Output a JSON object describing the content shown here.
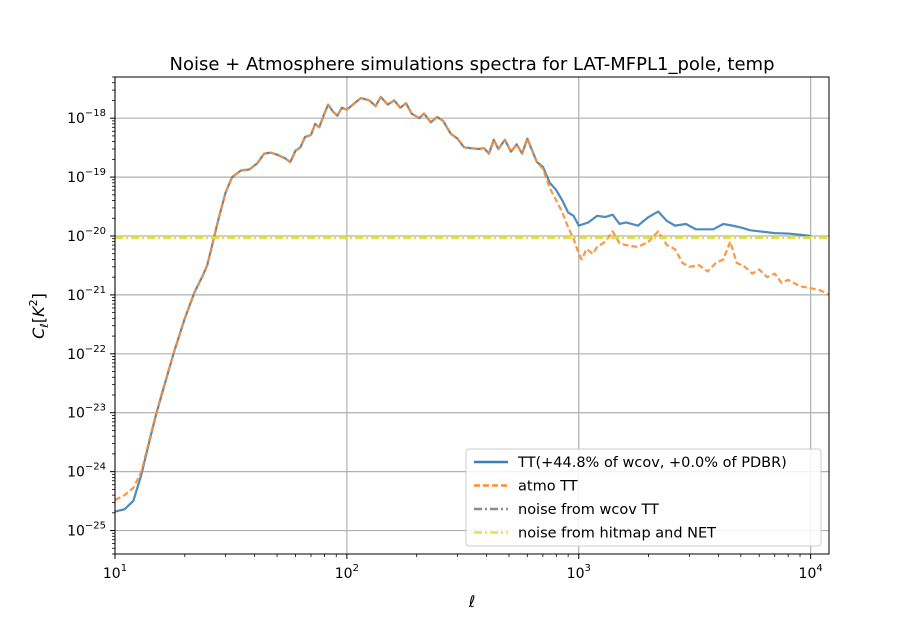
{
  "chart_data": {
    "type": "line",
    "title": "Noise + Atmosphere simulations spectra for LAT-MFPL1_pole, temp",
    "xlabel": "ℓ",
    "ylabel": "C_ℓ[K²]",
    "xscale": "log",
    "yscale": "log",
    "xlim": [
      10,
      12000
    ],
    "ylim": [
      4e-26,
      5e-18
    ],
    "grid": true,
    "legend_position": "lower-right",
    "x_ticks": [
      {
        "value": 10,
        "base": "10",
        "exp": "1"
      },
      {
        "value": 100,
        "base": "10",
        "exp": "2"
      },
      {
        "value": 1000,
        "base": "10",
        "exp": "3"
      },
      {
        "value": 10000,
        "base": "10",
        "exp": "4"
      }
    ],
    "y_ticks": [
      {
        "value": 1e-25,
        "base": "10",
        "exp": "−25"
      },
      {
        "value": 1e-24,
        "base": "10",
        "exp": "−24"
      },
      {
        "value": 1e-23,
        "base": "10",
        "exp": "−23"
      },
      {
        "value": 1e-22,
        "base": "10",
        "exp": "−22"
      },
      {
        "value": 1e-21,
        "base": "10",
        "exp": "−21"
      },
      {
        "value": 1e-20,
        "base": "10",
        "exp": "−20"
      },
      {
        "value": 1e-19,
        "base": "10",
        "exp": "−19"
      },
      {
        "value": 1e-18,
        "base": "10",
        "exp": "−18"
      }
    ],
    "series": [
      {
        "name": "TT(+44.8% of wcov, +0.0% of PDBR)",
        "color": "#3a7fb5",
        "style": "solid",
        "points": [
          [
            10,
            2.1e-25
          ],
          [
            11,
            2.3e-25
          ],
          [
            12,
            3.2e-25
          ],
          [
            13,
            9e-25
          ],
          [
            14,
            3e-24
          ],
          [
            15,
            9e-24
          ],
          [
            16,
            2.2e-23
          ],
          [
            18,
            1.1e-22
          ],
          [
            20,
            4e-22
          ],
          [
            22,
            1.1e-21
          ],
          [
            24,
            2.2e-21
          ],
          [
            25,
            3.2e-21
          ],
          [
            26,
            6e-21
          ],
          [
            28,
            2e-20
          ],
          [
            30,
            5.5e-20
          ],
          [
            32,
            1e-19
          ],
          [
            35,
            1.3e-19
          ],
          [
            38,
            1.35e-19
          ],
          [
            41,
            1.7e-19
          ],
          [
            44,
            2.5e-19
          ],
          [
            47,
            2.6e-19
          ],
          [
            50,
            2.4e-19
          ],
          [
            54,
            2.1e-19
          ],
          [
            57,
            1.8e-19
          ],
          [
            60,
            2.8e-19
          ],
          [
            63,
            3.2e-19
          ],
          [
            66,
            4.8e-19
          ],
          [
            70,
            5.2e-19
          ],
          [
            73,
            8e-19
          ],
          [
            76,
            7e-19
          ],
          [
            80,
            1.2e-18
          ],
          [
            83,
            1.7e-18
          ],
          [
            87,
            1.3e-18
          ],
          [
            91,
            1.1e-18
          ],
          [
            95,
            1.5e-18
          ],
          [
            100,
            1.4e-18
          ],
          [
            108,
            1.8e-18
          ],
          [
            115,
            2.2e-18
          ],
          [
            125,
            2e-18
          ],
          [
            133,
            1.6e-18
          ],
          [
            140,
            2.3e-18
          ],
          [
            150,
            1.7e-18
          ],
          [
            160,
            2e-18
          ],
          [
            170,
            1.5e-18
          ],
          [
            180,
            1.8e-18
          ],
          [
            190,
            1.2e-18
          ],
          [
            205,
            1e-18
          ],
          [
            215,
            1.2e-18
          ],
          [
            230,
            8.5e-19
          ],
          [
            245,
            1.05e-18
          ],
          [
            260,
            9e-19
          ],
          [
            280,
            5.5e-19
          ],
          [
            300,
            4.5e-19
          ],
          [
            320,
            3.2e-19
          ],
          [
            340,
            3.1e-19
          ],
          [
            370,
            3e-19
          ],
          [
            390,
            3.1e-19
          ],
          [
            410,
            2.5e-19
          ],
          [
            430,
            4.3e-19
          ],
          [
            450,
            3e-19
          ],
          [
            480,
            4.3e-19
          ],
          [
            510,
            2.7e-19
          ],
          [
            540,
            3.6e-19
          ],
          [
            570,
            2.5e-19
          ],
          [
            600,
            4.5e-19
          ],
          [
            630,
            2.8e-19
          ],
          [
            660,
            1.8e-19
          ],
          [
            700,
            1.5e-19
          ],
          [
            750,
            8e-20
          ],
          [
            800,
            6e-20
          ],
          [
            850,
            4e-20
          ],
          [
            900,
            2.5e-20
          ],
          [
            950,
            2.2e-20
          ],
          [
            1000,
            1.5e-20
          ],
          [
            1100,
            1.7e-20
          ],
          [
            1200,
            2.2e-20
          ],
          [
            1300,
            2.1e-20
          ],
          [
            1400,
            2.3e-20
          ],
          [
            1500,
            1.6e-20
          ],
          [
            1600,
            1.7e-20
          ],
          [
            1800,
            1.5e-20
          ],
          [
            2000,
            2.1e-20
          ],
          [
            2200,
            2.6e-20
          ],
          [
            2400,
            1.8e-20
          ],
          [
            2600,
            1.5e-20
          ],
          [
            2900,
            1.6e-20
          ],
          [
            3200,
            1.3e-20
          ],
          [
            3500,
            1.3e-20
          ],
          [
            3800,
            1.3e-20
          ],
          [
            4200,
            1.6e-20
          ],
          [
            4600,
            1.5e-20
          ],
          [
            5000,
            1.4e-20
          ],
          [
            5500,
            1.25e-20
          ],
          [
            6000,
            1.2e-20
          ],
          [
            7000,
            1.12e-20
          ],
          [
            8000,
            1.1e-20
          ],
          [
            9000,
            1.05e-20
          ],
          [
            10000,
            1e-20
          ]
        ]
      },
      {
        "name": "atmo TT",
        "color": "#ff8c2e",
        "style": "dashed",
        "points": [
          [
            10,
            3.3e-25
          ],
          [
            11,
            4e-25
          ],
          [
            12,
            5.3e-25
          ],
          [
            13,
            1e-24
          ],
          [
            14,
            3.2e-24
          ],
          [
            15,
            9.2e-24
          ],
          [
            16,
            2.3e-23
          ],
          [
            18,
            1.1e-22
          ],
          [
            20,
            4e-22
          ],
          [
            22,
            1.1e-21
          ],
          [
            24,
            2.2e-21
          ],
          [
            25,
            3.2e-21
          ],
          [
            26,
            6e-21
          ],
          [
            28,
            2e-20
          ],
          [
            30,
            5.5e-20
          ],
          [
            32,
            1e-19
          ],
          [
            35,
            1.3e-19
          ],
          [
            38,
            1.35e-19
          ],
          [
            41,
            1.7e-19
          ],
          [
            44,
            2.5e-19
          ],
          [
            47,
            2.6e-19
          ],
          [
            50,
            2.4e-19
          ],
          [
            54,
            2.1e-19
          ],
          [
            57,
            1.8e-19
          ],
          [
            60,
            2.8e-19
          ],
          [
            63,
            3.2e-19
          ],
          [
            66,
            4.8e-19
          ],
          [
            70,
            5.2e-19
          ],
          [
            73,
            8e-19
          ],
          [
            76,
            7e-19
          ],
          [
            80,
            1.2e-18
          ],
          [
            83,
            1.7e-18
          ],
          [
            87,
            1.3e-18
          ],
          [
            91,
            1.1e-18
          ],
          [
            95,
            1.5e-18
          ],
          [
            100,
            1.4e-18
          ],
          [
            108,
            1.8e-18
          ],
          [
            115,
            2.2e-18
          ],
          [
            125,
            2e-18
          ],
          [
            133,
            1.6e-18
          ],
          [
            140,
            2.3e-18
          ],
          [
            150,
            1.7e-18
          ],
          [
            160,
            2e-18
          ],
          [
            170,
            1.5e-18
          ],
          [
            180,
            1.8e-18
          ],
          [
            190,
            1.2e-18
          ],
          [
            205,
            1e-18
          ],
          [
            215,
            1.2e-18
          ],
          [
            230,
            8.5e-19
          ],
          [
            245,
            1.05e-18
          ],
          [
            260,
            9e-19
          ],
          [
            280,
            5.5e-19
          ],
          [
            300,
            4.5e-19
          ],
          [
            320,
            3.2e-19
          ],
          [
            340,
            3.1e-19
          ],
          [
            370,
            3e-19
          ],
          [
            390,
            3.1e-19
          ],
          [
            410,
            2.5e-19
          ],
          [
            430,
            4.3e-19
          ],
          [
            450,
            3e-19
          ],
          [
            480,
            4.3e-19
          ],
          [
            510,
            2.7e-19
          ],
          [
            540,
            3.6e-19
          ],
          [
            570,
            2.5e-19
          ],
          [
            600,
            4.5e-19
          ],
          [
            630,
            2.8e-19
          ],
          [
            660,
            1.8e-19
          ],
          [
            700,
            1.4e-19
          ],
          [
            750,
            6.5e-20
          ],
          [
            800,
            4e-20
          ],
          [
            850,
            2.5e-20
          ],
          [
            900,
            1.4e-20
          ],
          [
            950,
            9e-21
          ],
          [
            1000,
            5e-21
          ],
          [
            1030,
            4e-21
          ],
          [
            1080,
            6e-21
          ],
          [
            1150,
            5e-21
          ],
          [
            1200,
            6.5e-21
          ],
          [
            1300,
            8e-21
          ],
          [
            1400,
            1.2e-20
          ],
          [
            1500,
            7.5e-21
          ],
          [
            1600,
            7e-21
          ],
          [
            1800,
            6.5e-21
          ],
          [
            2000,
            8e-21
          ],
          [
            2200,
            1.2e-20
          ],
          [
            2400,
            7e-21
          ],
          [
            2600,
            6e-21
          ],
          [
            2800,
            3.5e-21
          ],
          [
            3000,
            3e-21
          ],
          [
            3300,
            3.2e-21
          ],
          [
            3600,
            2.5e-21
          ],
          [
            3900,
            3.5e-21
          ],
          [
            4200,
            4e-21
          ],
          [
            4500,
            8e-21
          ],
          [
            4800,
            3.5e-21
          ],
          [
            5200,
            3e-21
          ],
          [
            5600,
            2.3e-21
          ],
          [
            6000,
            2.7e-21
          ],
          [
            6500,
            2e-21
          ],
          [
            7000,
            2.3e-21
          ],
          [
            7500,
            1.6e-21
          ],
          [
            8000,
            1.8e-21
          ],
          [
            9000,
            1.4e-21
          ],
          [
            10000,
            1.3e-21
          ],
          [
            11000,
            1.2e-21
          ],
          [
            12000,
            1e-21
          ]
        ]
      },
      {
        "name": "noise from wcov TT",
        "color": "#8c8c8c",
        "style": "dashdot",
        "points": [
          [
            10,
            9.4e-21
          ],
          [
            12000,
            9.4e-21
          ]
        ]
      },
      {
        "name": "noise from hitmap and NET",
        "color": "#e3e34a",
        "style": "dashdot",
        "points": [
          [
            10,
            9.4e-21
          ],
          [
            12000,
            9.4e-21
          ]
        ]
      }
    ]
  }
}
